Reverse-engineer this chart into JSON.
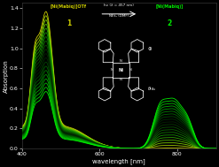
{
  "background_color": "#000000",
  "axes_background": "#000000",
  "text_color": "#ffffff",
  "xlabel": "wavelength [nm]",
  "ylabel": "Absorption",
  "xlim": [
    400,
    900
  ],
  "ylim": [
    0.0,
    1.45
  ],
  "yticks": [
    0.0,
    0.2,
    0.4,
    0.6,
    0.8,
    1.0,
    1.2,
    1.4
  ],
  "xticks": [
    400,
    600,
    800
  ],
  "label1": "[Ni(Mabiq)]OTf",
  "label1_num": "1",
  "label2": "[Ni(Mabiq)]",
  "label2_num": "2",
  "arrow_label_line1": "hv (λ = 457 nm)",
  "arrow_label_line2": "NEt₃ (DMF)",
  "n_spectra": 20,
  "line_width": 0.6
}
